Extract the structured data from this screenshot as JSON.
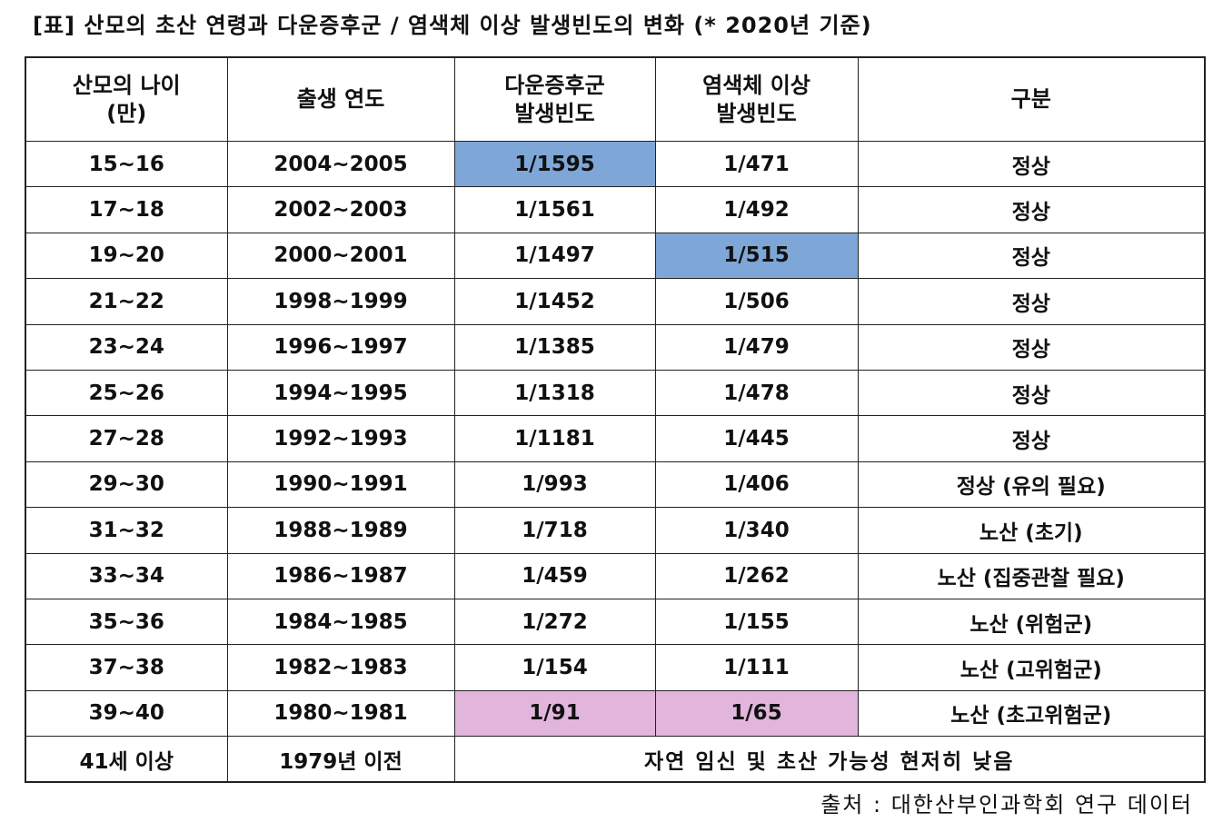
{
  "title": "[표] 산모의 초산 연령과 다운증후군 / 염색체 이상 발생빈도의 변화 (* 2020년 기준)",
  "headers": [
    [
      "산모의 나이",
      "(만)"
    ],
    [
      "출생 연도"
    ],
    [
      "다운증후군",
      "발생빈도"
    ],
    [
      "염색체 이상",
      "발생빈도"
    ],
    [
      "구분"
    ]
  ],
  "rows": [
    {
      "age": "15~16",
      "year": "2004~2005",
      "down": "1/1595",
      "chrom": "1/471",
      "category": "정상"
    },
    {
      "age": "17~18",
      "year": "2002~2003",
      "down": "1/1561",
      "chrom": "1/492",
      "category": "정상"
    },
    {
      "age": "19~20",
      "year": "2000~2001",
      "down": "1/1497",
      "chrom": "1/515",
      "category": "정상"
    },
    {
      "age": "21~22",
      "year": "1998~1999",
      "down": "1/1452",
      "chrom": "1/506",
      "category": "정상"
    },
    {
      "age": "23~24",
      "year": "1996~1997",
      "down": "1/1385",
      "chrom": "1/479",
      "category": "정상"
    },
    {
      "age": "25~26",
      "year": "1994~1995",
      "down": "1/1318",
      "chrom": "1/478",
      "category": "정상"
    },
    {
      "age": "27~28",
      "year": "1992~1993",
      "down": "1/1181",
      "chrom": "1/445",
      "category": "정상"
    },
    {
      "age": "29~30",
      "year": "1990~1991",
      "down": "1/993",
      "chrom": "1/406",
      "category": "정상 (유의 필요)"
    },
    {
      "age": "31~32",
      "year": "1988~1989",
      "down": "1/718",
      "chrom": "1/340",
      "category": "노산 (초기)"
    },
    {
      "age": "33~34",
      "year": "1986~1987",
      "down": "1/459",
      "chrom": "1/262",
      "category": "노산 (집중관찰 필요)"
    },
    {
      "age": "35~36",
      "year": "1984~1985",
      "down": "1/272",
      "chrom": "1/155",
      "category": "노산 (위험군)"
    },
    {
      "age": "37~38",
      "year": "1982~1983",
      "down": "1/154",
      "chrom": "1/111",
      "category": "노산 (고위험군)"
    },
    {
      "age": "39~40",
      "year": "1980~1981",
      "down": "1/91",
      "chrom": "1/65",
      "category": "노산 (초고위험군)"
    }
  ],
  "last_row": {
    "age": "41세 이상",
    "year": "1979년 이전",
    "note": "자연 임신 및 초산 가능성 현저히 낮음"
  },
  "source": "출처 : 대한산부인과학회 연구 데이터",
  "highlight_colors": {
    "blue": "#7ea7d8",
    "pink": "#e2b5dc"
  }
}
